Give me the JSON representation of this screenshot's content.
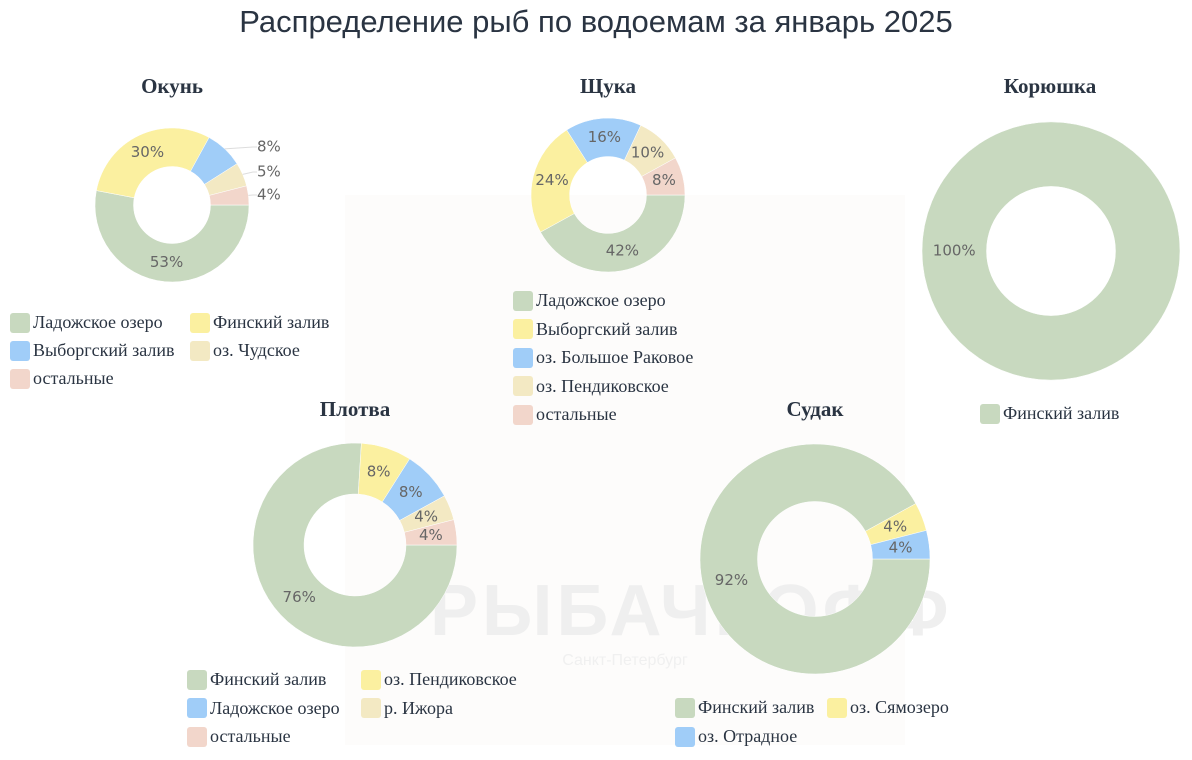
{
  "title": "Распределение рыб по водоемам за январь 2025",
  "watermark": {
    "text": "РЫБАЧКОФФ",
    "subtext": "Санкт-Петербург"
  },
  "colors": {
    "green": "#c8d9bf",
    "yellow": "#fbf0a0",
    "blue": "#a0cdf8",
    "cream": "#f3e9c3",
    "pink": "#f2d6cb"
  },
  "chart_data": [
    {
      "type": "pie",
      "title": "Окунь",
      "hole": 0.5,
      "categories": [
        "Ладожское озеро",
        "Финский залив",
        "Выборгский залив",
        "оз. Чудское",
        "остальные"
      ],
      "values": [
        53,
        30,
        8,
        5,
        4
      ],
      "labels": [
        "53%",
        "30%",
        "8%",
        "5%",
        "4%"
      ],
      "colors": [
        "#c8d9bf",
        "#fbf0a0",
        "#a0cdf8",
        "#f3e9c3",
        "#f2d6cb"
      ]
    },
    {
      "type": "pie",
      "title": "Щука",
      "hole": 0.5,
      "categories": [
        "Ладожское озеро",
        "Выборгский залив",
        "оз. Большое Раковое",
        "оз. Пендиковское",
        "остальные"
      ],
      "values": [
        42,
        24,
        16,
        10,
        8
      ],
      "labels": [
        "42%",
        "24%",
        "16%",
        "10%",
        "8%"
      ],
      "colors": [
        "#c8d9bf",
        "#fbf0a0",
        "#a0cdf8",
        "#f3e9c3",
        "#f2d6cb"
      ]
    },
    {
      "type": "pie",
      "title": "Корюшка",
      "hole": 0.5,
      "categories": [
        "Финский залив"
      ],
      "values": [
        100
      ],
      "labels": [
        "100%"
      ],
      "colors": [
        "#c8d9bf"
      ]
    },
    {
      "type": "pie",
      "title": "Плотва",
      "hole": 0.5,
      "categories": [
        "Финский залив",
        "оз. Пендиковское",
        "Ладожское озеро",
        "р. Ижора",
        "остальные"
      ],
      "values": [
        76,
        8,
        8,
        4,
        4
      ],
      "labels": [
        "76%",
        "8%",
        "8%",
        "4%",
        "4%"
      ],
      "colors": [
        "#c8d9bf",
        "#fbf0a0",
        "#a0cdf8",
        "#f3e9c3",
        "#f2d6cb"
      ]
    },
    {
      "type": "pie",
      "title": "Судак",
      "hole": 0.5,
      "categories": [
        "Финский залив",
        "оз. Сямозеро",
        "оз. Отрадное"
      ],
      "values": [
        92,
        4,
        4
      ],
      "labels": [
        "92%",
        "4%",
        "4%"
      ],
      "colors": [
        "#c8d9bf",
        "#fbf0a0",
        "#a0cdf8"
      ]
    }
  ]
}
